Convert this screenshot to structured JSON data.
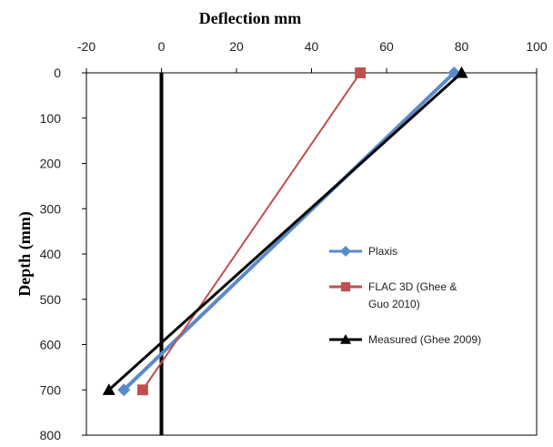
{
  "chart_data": {
    "type": "line",
    "title": "",
    "xlabel": "Deflection mm",
    "ylabel": "Depth (mm)",
    "x_axis_position": "top",
    "y_axis_inverted": true,
    "xlim": [
      -20,
      100
    ],
    "ylim": [
      0,
      800
    ],
    "x_ticks": [
      -20,
      0,
      20,
      40,
      60,
      80,
      100
    ],
    "y_ticks": [
      0,
      100,
      200,
      300,
      400,
      500,
      600,
      700,
      800
    ],
    "grid": false,
    "zero_line": {
      "x": 0,
      "color": "#000000"
    },
    "legend_position": "right",
    "series": [
      {
        "name": "Plaxis",
        "marker": "diamond",
        "color": "#5b8ac8",
        "points": [
          {
            "x": 78,
            "y": 0
          },
          {
            "x": -10,
            "y": 700
          }
        ]
      },
      {
        "name": "FLAC 3D (Ghee & Guo 2010)",
        "legend_lines": [
          "FLAC 3D (Ghee &",
          "Guo 2010)"
        ],
        "marker": "square",
        "color": "#c0504d",
        "points": [
          {
            "x": 53,
            "y": 0
          },
          {
            "x": -5,
            "y": 700
          }
        ]
      },
      {
        "name": "Measured (Ghee 2009)",
        "marker": "triangle",
        "color": "#000000",
        "points": [
          {
            "x": 80,
            "y": 0
          },
          {
            "x": -14,
            "y": 700
          }
        ]
      }
    ]
  }
}
